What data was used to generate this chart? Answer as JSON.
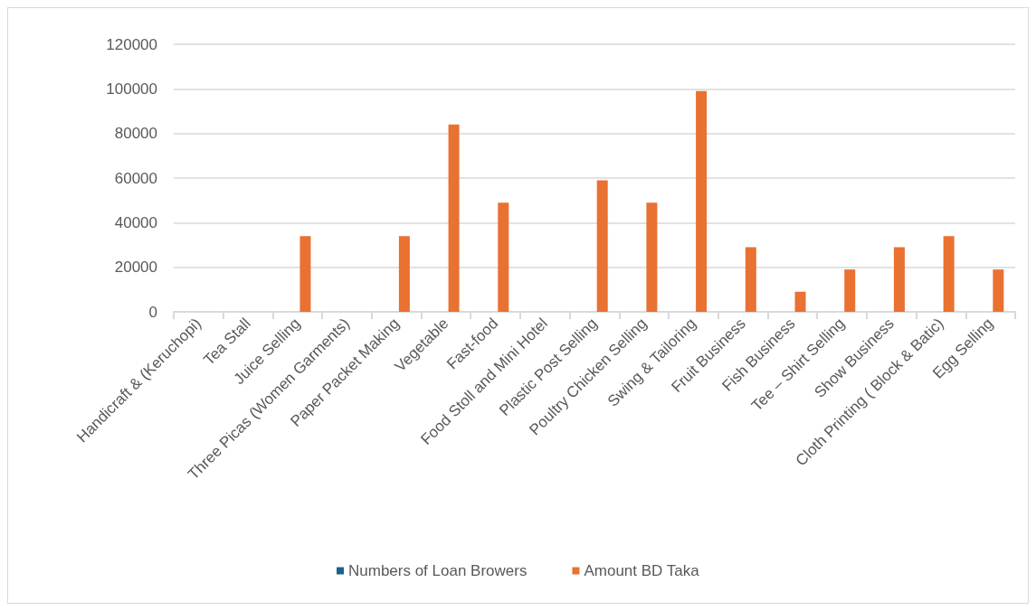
{
  "chart_data": {
    "type": "bar",
    "categories": [
      "Handicraft & (Keruchopi)",
      "Tea Stall",
      "Juice Selling",
      "Three Picas (Women Garments)",
      "Paper Packet Making",
      "Vegetable",
      "Fast-food",
      "Food Stoll and Mini Hotel",
      "Plastic Post Selling",
      "Poultry Chicken Selling",
      "Swing & Tailoring",
      "Fruit Business",
      "Fish Business",
      "Tee – Shirt Selling",
      "Show Business",
      "Cloth Printing ( Block & Batic)",
      "Egg Selling"
    ],
    "series": [
      {
        "name": "Numbers of Loan Browers",
        "color": "#1f5f8b",
        "values": [
          null,
          null,
          null,
          null,
          null,
          null,
          null,
          null,
          null,
          null,
          null,
          null,
          null,
          null,
          null,
          null,
          null
        ]
      },
      {
        "name": "Amount BD Taka",
        "color": "#e97132",
        "values": [
          null,
          null,
          34000,
          null,
          34000,
          84000,
          49000,
          null,
          59000,
          49000,
          99000,
          29000,
          9000,
          19000,
          29000,
          34000,
          19000
        ]
      }
    ],
    "ylim": [
      0,
      120000
    ],
    "yticks": [
      0,
      20000,
      40000,
      60000,
      80000,
      100000,
      120000
    ],
    "grid": "y",
    "legend": "bottom"
  }
}
